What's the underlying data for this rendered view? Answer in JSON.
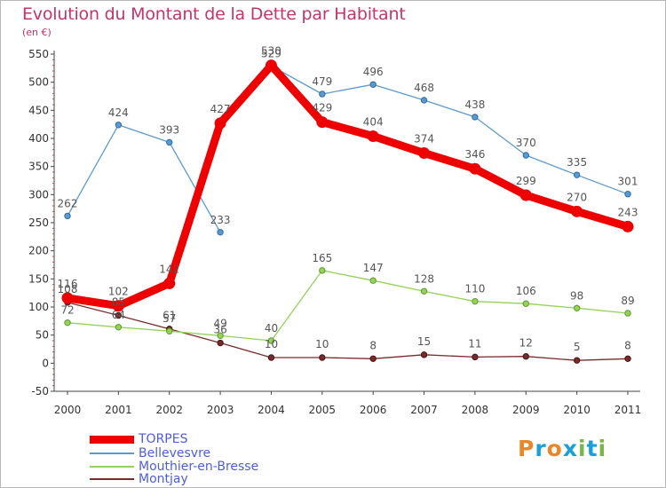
{
  "chart": {
    "title": "Evolution du Montant de la Dette par Habitant",
    "subtitle": "(en €)"
  },
  "brand": {
    "text": "Proxiti",
    "colors": [
      "#e8862a",
      "#1a9fd9",
      "#e8862a",
      "#1a9fd9",
      "#7ab648",
      "#1a9fd9",
      "#7ab648"
    ]
  },
  "chart_data": {
    "type": "line",
    "title": "Evolution du Montant de la Dette par Habitant",
    "subtitle": "(en €)",
    "x": [
      "2000",
      "2001",
      "2002",
      "2003",
      "2004",
      "2005",
      "2006",
      "2007",
      "2008",
      "2009",
      "2010",
      "2011"
    ],
    "ylim": [
      -50,
      550
    ],
    "yticks": [
      -50,
      0,
      50,
      100,
      150,
      200,
      250,
      300,
      350,
      400,
      450,
      500,
      550
    ],
    "grid": false,
    "legend_position": "bottom-left",
    "series": [
      {
        "name": "TORPES",
        "color": "#ee0000",
        "values": [
          116,
          102,
          142,
          427,
          530,
          429,
          404,
          374,
          346,
          299,
          270,
          243
        ]
      },
      {
        "name": "Bellevesvre",
        "color": "#5b9ad0",
        "values": [
          262,
          424,
          393,
          233,
          529,
          479,
          496,
          468,
          438,
          370,
          335,
          301
        ]
      },
      {
        "name": "Mouthier-en-Bresse",
        "color": "#94d25a",
        "values": [
          72,
          64,
          57,
          49,
          40,
          165,
          147,
          128,
          110,
          106,
          98,
          89
        ]
      },
      {
        "name": "Montjay",
        "color": "#7a2a2a",
        "values": [
          108,
          85,
          61,
          36,
          10,
          10,
          8,
          15,
          11,
          12,
          5,
          8
        ]
      }
    ]
  }
}
